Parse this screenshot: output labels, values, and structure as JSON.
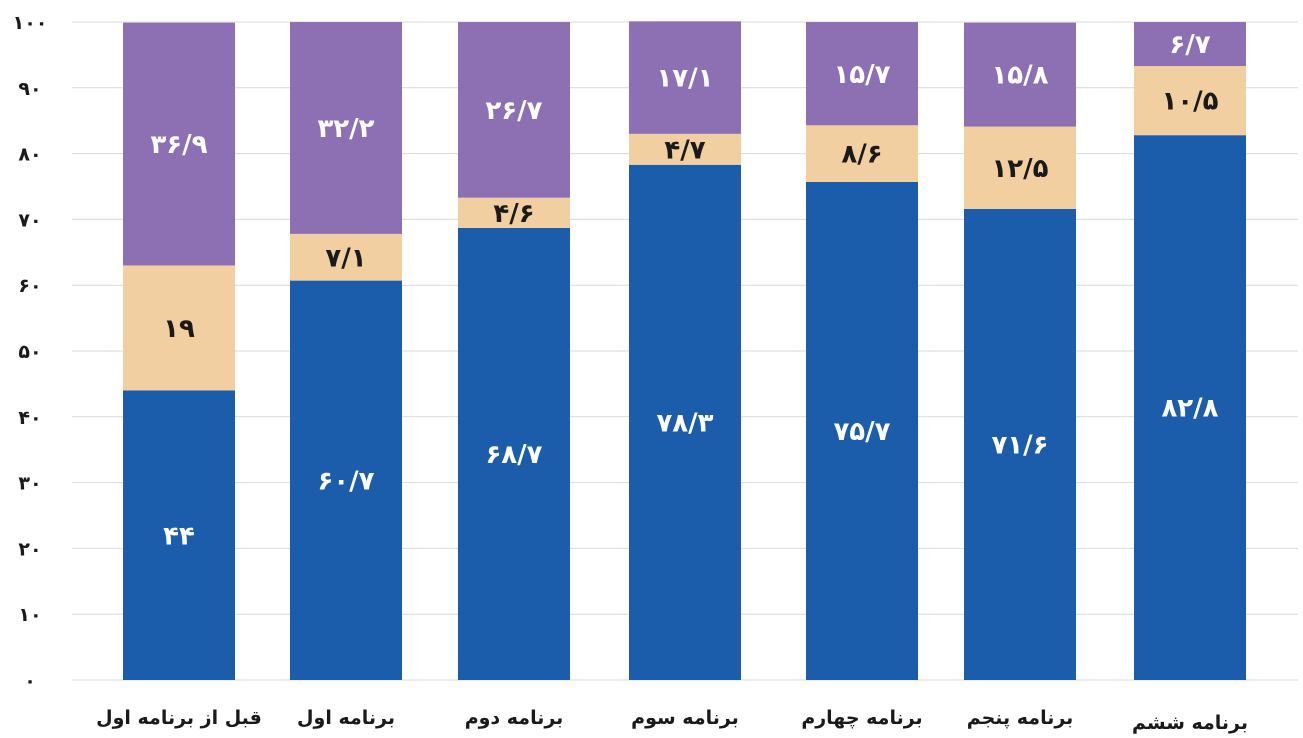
{
  "chart_data": {
    "type": "bar",
    "stacked": true,
    "categories": [
      "قبل از برنامه اول",
      "برنامه اول",
      "برنامه دوم",
      "برنامه سوم",
      "برنامه چهارم",
      "برنامه پنجم",
      "برنامه ششم"
    ],
    "series": [
      {
        "values": [
          44,
          60.7,
          68.7,
          78.3,
          75.7,
          71.6,
          82.8
        ],
        "labels": [
          "۴۴",
          "۶۰/۷",
          "۶۸/۷",
          "۷۸/۳",
          "۷۵/۷",
          "۷۱/۶",
          "۸۲/۸"
        ]
      },
      {
        "values": [
          19,
          7.1,
          4.6,
          4.7,
          8.6,
          12.5,
          10.5
        ],
        "labels": [
          "۱۹",
          "۷/۱",
          "۴/۶",
          "۴/۷",
          "۸/۶",
          "۱۲/۵",
          "۱۰/۵"
        ]
      },
      {
        "values": [
          36.9,
          32.2,
          26.7,
          17.1,
          15.7,
          15.8,
          6.7
        ],
        "labels": [
          "۳۶/۹",
          "۳۲/۲",
          "۲۶/۷",
          "۱۷/۱",
          "۱۵/۷",
          "۱۵/۸",
          "۶/۷"
        ]
      }
    ],
    "colors": [
      "#1b5dab",
      "#f2cfa0",
      "#8d70b3"
    ],
    "yticks": [
      "۰",
      "۱۰",
      "۲۰",
      "۳۰",
      "۴۰",
      "۵۰",
      "۶۰",
      "۷۰",
      "۸۰",
      "۹۰",
      "۱۰۰"
    ],
    "ylim": [
      0,
      100
    ],
    "grid": true,
    "legend": "none"
  }
}
